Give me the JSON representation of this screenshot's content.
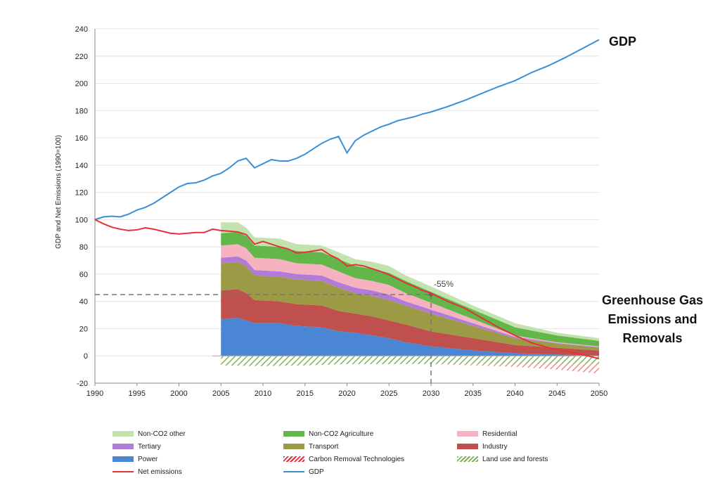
{
  "chart_data": {
    "type": "area",
    "title": "",
    "xlabel": "",
    "ylabel": "GDP and Net Emissions (1990=100)",
    "xlim": [
      1990,
      2050
    ],
    "ylim": [
      -20,
      240
    ],
    "x_ticks": [
      1990,
      1995,
      2000,
      2005,
      2010,
      2015,
      2020,
      2025,
      2030,
      2035,
      2040,
      2045,
      2050
    ],
    "y_ticks": [
      -20,
      0,
      20,
      40,
      60,
      80,
      100,
      120,
      140,
      160,
      180,
      200,
      220,
      240
    ],
    "grid": "horizontal",
    "legend_position": "bottom",
    "annotations": {
      "gdp_label": "GDP",
      "ghg_label_lines": [
        "Greenhouse Gas",
        "Emissions and",
        "Removals"
      ],
      "reduction_label": "-55%",
      "reduction_point": {
        "x": 2030,
        "y": 45
      }
    },
    "lines": [
      {
        "name": "GDP",
        "color": "#3a8fd6",
        "x": [
          1990,
          1991,
          1992,
          1993,
          1994,
          1995,
          1996,
          1997,
          1998,
          1999,
          2000,
          2001,
          2002,
          2003,
          2004,
          2005,
          2006,
          2007,
          2008,
          2009,
          2010,
          2011,
          2012,
          2013,
          2014,
          2015,
          2016,
          2017,
          2018,
          2019,
          2020,
          2021,
          2022,
          2023,
          2024,
          2025,
          2026,
          2027,
          2028,
          2029,
          2030,
          2032,
          2034,
          2036,
          2038,
          2040,
          2042,
          2044,
          2046,
          2048,
          2050
        ],
        "y": [
          100,
          102,
          102.5,
          102,
          104,
          107,
          109,
          112,
          116,
          120,
          124,
          126.5,
          127,
          129,
          132,
          134,
          138,
          143,
          145,
          138,
          141,
          144,
          143,
          143,
          145,
          148,
          152,
          156,
          159,
          161,
          149,
          158,
          162,
          165,
          168,
          170,
          172.5,
          174,
          175.5,
          177.5,
          179,
          183,
          187.5,
          192.5,
          197.5,
          202,
          208,
          213,
          219,
          225.5,
          232
        ]
      },
      {
        "name": "Net emissions",
        "color": "#e8303a",
        "x": [
          1990,
          1991,
          1992,
          1993,
          1994,
          1995,
          1996,
          1997,
          1998,
          1999,
          2000,
          2001,
          2002,
          2003,
          2004,
          2005,
          2006,
          2007,
          2008,
          2009,
          2010,
          2011,
          2012,
          2013,
          2014,
          2015,
          2016,
          2017,
          2018,
          2019,
          2020,
          2021,
          2022,
          2023,
          2024,
          2025,
          2026,
          2027,
          2028,
          2029,
          2030,
          2032,
          2034,
          2036,
          2038,
          2040,
          2042,
          2044,
          2046,
          2048,
          2050
        ],
        "y": [
          100,
          97,
          94.5,
          93,
          92,
          92.5,
          94,
          93,
          91.5,
          90,
          89.5,
          90,
          90.5,
          90.5,
          93,
          92,
          91.5,
          91,
          89,
          82,
          84,
          82,
          80,
          78.5,
          75.5,
          76,
          77,
          78,
          74,
          71,
          66,
          67,
          66,
          64,
          62,
          59.5,
          56.5,
          53.5,
          51,
          48,
          46,
          40,
          35,
          28,
          21,
          15,
          9.5,
          6,
          3.5,
          1,
          -2
        ]
      }
    ],
    "stacked_series": [
      {
        "name": "Power",
        "color": "#4a86d4",
        "x": [
          2005,
          2007,
          2008,
          2009,
          2012,
          2014,
          2017,
          2019,
          2021,
          2023,
          2025,
          2027,
          2030,
          2035,
          2040,
          2045,
          2050
        ],
        "values": [
          27,
          28,
          26,
          24,
          24,
          22,
          21,
          18,
          17,
          15,
          13,
          10,
          7,
          4,
          2,
          1,
          0
        ]
      },
      {
        "name": "Industry",
        "color": "#c0504d",
        "x": [
          2005,
          2007,
          2008,
          2009,
          2012,
          2014,
          2017,
          2019,
          2021,
          2023,
          2025,
          2027,
          2030,
          2035,
          2040,
          2045,
          2050
        ],
        "values": [
          21,
          21,
          20,
          17,
          16,
          16,
          16,
          15,
          14,
          14,
          13,
          13,
          11,
          9,
          6,
          5,
          4
        ]
      },
      {
        "name": "Transport",
        "color": "#9d9a45",
        "x": [
          2005,
          2007,
          2008,
          2009,
          2012,
          2014,
          2017,
          2019,
          2021,
          2023,
          2025,
          2027,
          2030,
          2035,
          2040,
          2045,
          2050
        ],
        "values": [
          20,
          20,
          20,
          18,
          18,
          18,
          18,
          17,
          15,
          15,
          15,
          14,
          13,
          9,
          5,
          3,
          2
        ]
      },
      {
        "name": "Tertiary",
        "color": "#b07cd8",
        "x": [
          2005,
          2007,
          2008,
          2009,
          2012,
          2014,
          2017,
          2019,
          2021,
          2023,
          2025,
          2027,
          2030,
          2035,
          2040,
          2045,
          2050
        ],
        "values": [
          4,
          4,
          4,
          4,
          4,
          4,
          4,
          4,
          4,
          4,
          4,
          3,
          3,
          2,
          1,
          0.5,
          0.5
        ]
      },
      {
        "name": "Residential",
        "color": "#f7b2c2",
        "x": [
          2005,
          2007,
          2008,
          2009,
          2012,
          2014,
          2017,
          2019,
          2021,
          2023,
          2025,
          2027,
          2030,
          2035,
          2040,
          2045,
          2050
        ],
        "values": [
          9,
          9,
          9,
          9,
          9,
          8,
          8,
          8,
          7,
          7,
          7,
          6,
          5,
          3,
          1,
          0.5,
          0.5
        ]
      },
      {
        "name": "Non-CO2 Agriculture",
        "color": "#63b64a",
        "x": [
          2005,
          2007,
          2008,
          2009,
          2012,
          2014,
          2017,
          2019,
          2021,
          2023,
          2025,
          2027,
          2030,
          2035,
          2040,
          2045,
          2050
        ],
        "values": [
          9,
          9,
          9,
          9,
          9,
          9,
          9,
          9,
          9,
          9,
          9,
          9,
          8,
          7,
          6,
          5,
          4
        ]
      },
      {
        "name": "Non-CO2 other",
        "color": "#c2e2ae",
        "x": [
          2005,
          2007,
          2008,
          2009,
          2012,
          2014,
          2017,
          2019,
          2021,
          2023,
          2025,
          2027,
          2030,
          2035,
          2040,
          2045,
          2050
        ],
        "values": [
          8,
          7,
          6,
          6,
          6,
          5,
          5,
          5,
          5,
          5,
          5,
          4,
          4,
          3,
          3,
          2,
          2
        ]
      }
    ],
    "negative_series": [
      {
        "name": "Land use and forests",
        "color": "#7fb35a",
        "pattern": "hatch",
        "x": [
          2005,
          2010,
          2015,
          2020,
          2025,
          2030,
          2035,
          2040,
          2045,
          2050
        ],
        "values": [
          -7,
          -7.5,
          -7,
          -6,
          -6,
          -6,
          -6,
          -6,
          -6,
          -6
        ]
      },
      {
        "name": "Carbon Removal Technologies",
        "color": "#e8303a",
        "pattern": "hatch",
        "x": [
          2030,
          2035,
          2040,
          2045,
          2050
        ],
        "values": [
          0,
          -1,
          -2,
          -4,
          -7
        ]
      }
    ],
    "legend": [
      {
        "name": "Non-CO2 other",
        "kind": "area",
        "color": "#c2e2ae"
      },
      {
        "name": "Non-CO2 Agriculture",
        "kind": "area",
        "color": "#63b64a"
      },
      {
        "name": "Residential",
        "kind": "area",
        "color": "#f7b2c2"
      },
      {
        "name": "Tertiary",
        "kind": "area",
        "color": "#b07cd8"
      },
      {
        "name": "Transport",
        "kind": "area",
        "color": "#9d9a45"
      },
      {
        "name": "Industry",
        "kind": "area",
        "color": "#c0504d"
      },
      {
        "name": "Power",
        "kind": "area",
        "color": "#4a86d4"
      },
      {
        "name": "Carbon Removal Technologies",
        "kind": "hatch",
        "color": "#e8303a"
      },
      {
        "name": "Land use and forests",
        "kind": "hatch",
        "color": "#7fb35a"
      },
      {
        "name": "Net emissions",
        "kind": "line",
        "color": "#e8303a"
      },
      {
        "name": "GDP",
        "kind": "line",
        "color": "#3a8fd6"
      }
    ]
  }
}
